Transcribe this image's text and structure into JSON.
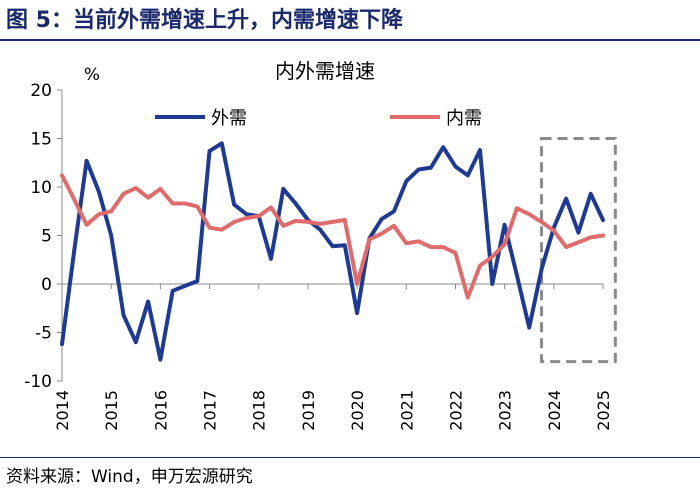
{
  "figure_title": "图 5：当前外需增速上升，内需增速下降",
  "source_note": "资料来源：Wind，申万宏源研究",
  "chart_data": {
    "type": "line",
    "title": "内外需增速",
    "unit_label": "%",
    "ylim": [
      -10,
      20
    ],
    "yticks": [
      -10,
      -5,
      0,
      5,
      10,
      15,
      20
    ],
    "xlim": [
      2014.0,
      2025.0
    ],
    "xticks": [
      "2014",
      "2015",
      "2016",
      "2017",
      "2018",
      "2019",
      "2020",
      "2021",
      "2022",
      "2023",
      "2024",
      "2025"
    ],
    "grid": false,
    "legend_position": "top",
    "highlight_box": {
      "x_range": [
        2023.75,
        2025.25
      ],
      "y_range": [
        -8,
        15
      ]
    },
    "series": [
      {
        "name": "外需",
        "color": "#1f3a93",
        "x": [
          2014.0,
          2014.25,
          2014.5,
          2014.75,
          2015.0,
          2015.25,
          2015.5,
          2015.75,
          2016.0,
          2016.25,
          2016.5,
          2016.75,
          2017.0,
          2017.25,
          2017.5,
          2017.75,
          2018.0,
          2018.25,
          2018.5,
          2018.75,
          2019.0,
          2019.25,
          2019.5,
          2019.75,
          2020.0,
          2020.25,
          2020.5,
          2020.75,
          2021.0,
          2021.25,
          2021.5,
          2021.75,
          2022.0,
          2022.25,
          2022.5,
          2022.75,
          2023.0,
          2023.25,
          2023.5,
          2023.75,
          2024.0,
          2024.25,
          2024.5,
          2024.75,
          2025.0
        ],
        "values": [
          -6.2,
          3.5,
          12.7,
          9.5,
          5.0,
          -3.2,
          -6.0,
          -1.8,
          -7.8,
          -0.7,
          -0.2,
          0.3,
          13.7,
          14.5,
          8.2,
          7.2,
          7.0,
          2.6,
          9.8,
          8.3,
          6.6,
          5.6,
          3.9,
          4.0,
          -3.0,
          4.7,
          6.7,
          7.5,
          10.6,
          11.8,
          12.0,
          14.1,
          12.1,
          11.2,
          13.8,
          0.0,
          6.1,
          0.9,
          -4.5,
          1.5,
          5.8,
          8.8,
          5.3,
          9.3,
          6.6
        ]
      },
      {
        "name": "内需",
        "color": "#e06b6b",
        "x": [
          2014.0,
          2014.25,
          2014.5,
          2014.75,
          2015.0,
          2015.25,
          2015.5,
          2015.75,
          2016.0,
          2016.25,
          2016.5,
          2016.75,
          2017.0,
          2017.25,
          2017.5,
          2017.75,
          2018.0,
          2018.25,
          2018.5,
          2018.75,
          2019.0,
          2019.25,
          2019.5,
          2019.75,
          2020.0,
          2020.25,
          2020.5,
          2020.75,
          2021.0,
          2021.25,
          2021.5,
          2021.75,
          2022.0,
          2022.25,
          2022.5,
          2022.75,
          2023.0,
          2023.25,
          2023.5,
          2023.75,
          2024.0,
          2024.25,
          2024.5,
          2024.75,
          2025.0
        ],
        "values": [
          11.2,
          8.7,
          6.1,
          7.2,
          7.5,
          9.3,
          9.9,
          8.9,
          9.8,
          8.3,
          8.3,
          8.0,
          5.8,
          5.6,
          6.4,
          6.8,
          7.0,
          7.9,
          6.0,
          6.5,
          6.4,
          6.2,
          6.4,
          6.6,
          0.0,
          4.6,
          5.2,
          6.0,
          4.2,
          4.4,
          3.8,
          3.8,
          3.2,
          -1.4,
          1.9,
          2.8,
          4.1,
          7.8,
          7.2,
          6.4,
          5.5,
          3.8,
          4.3,
          4.8,
          5.0
        ]
      }
    ]
  }
}
